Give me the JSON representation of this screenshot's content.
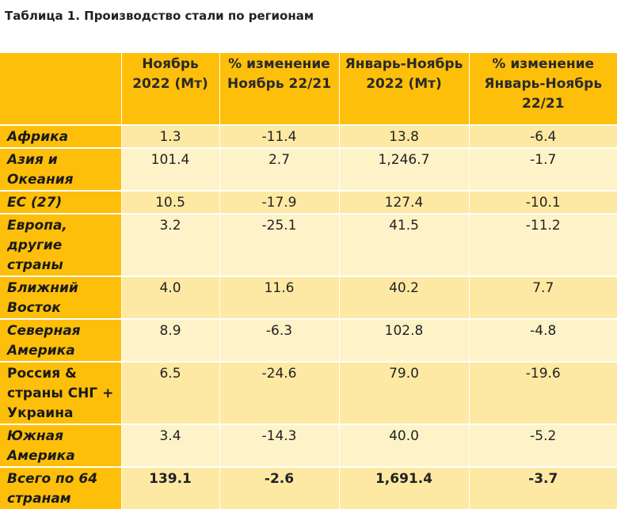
{
  "title": "Таблица 1. Производство стали по регионам",
  "headers": [
    "",
    "Ноябрь 2022 (Мт)",
    "% изменение Ноябрь 22/21",
    "Январь-Ноябрь 2022 (Мт)",
    "% изменение Январь-Ноябрь 22/21"
  ],
  "rows": [
    {
      "region": "Африка",
      "nov": "1.3",
      "nov_change": "-11.4",
      "ytd": "13.8",
      "ytd_change": "-6.4"
    },
    {
      "region": "Азия и Океания",
      "nov": "101.4",
      "nov_change": "2.7",
      "ytd": "1,246.7",
      "ytd_change": "-1.7"
    },
    {
      "region": "ЕС (27)",
      "nov": "10.5",
      "nov_change": "-17.9",
      "ytd": "127.4",
      "ytd_change": "-10.1"
    },
    {
      "region": "Европа, другие страны",
      "nov": "3.2",
      "nov_change": "-25.1",
      "ytd": "41.5",
      "ytd_change": "-11.2"
    },
    {
      "region": "Ближний Восток",
      "nov": "4.0",
      "nov_change": "11.6",
      "ytd": "40.2",
      "ytd_change": "7.7"
    },
    {
      "region": "Северная Америка",
      "nov": "8.9",
      "nov_change": "-6.3",
      "ytd": "102.8",
      "ytd_change": "-4.8"
    },
    {
      "region": "Россия & страны СНГ + Украина",
      "nov": "6.5",
      "nov_change": "-24.6",
      "ytd": "79.0",
      "ytd_change": "-19.6"
    },
    {
      "region": "Южная Америка",
      "nov": "3.4",
      "nov_change": "-14.3",
      "ytd": "40.0",
      "ytd_change": "-5.2"
    },
    {
      "region": "Всего по 64 странам",
      "nov": "139.1",
      "nov_change": "-2.6",
      "ytd": "1,691.4",
      "ytd_change": "-3.7"
    }
  ],
  "colors": {
    "header_bg": "#fdbf0a",
    "row_bg": "#fde9a3",
    "row_alt_bg": "#fef3c8"
  }
}
